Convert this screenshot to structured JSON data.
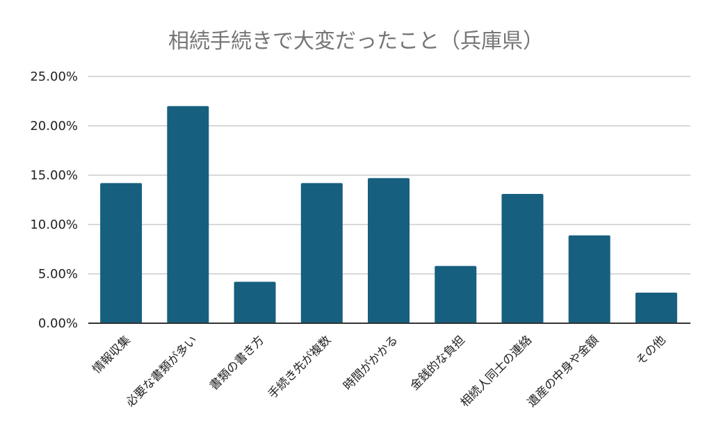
{
  "chart_data": {
    "type": "bar",
    "title": "相続手続きで大変だったこと（兵庫県）",
    "categories": [
      "情報収集",
      "必要な書類が多い",
      "書類の書き方",
      "手続き先が複数",
      "時間がかかる",
      "金銭的な負担",
      "相続人同士の連絡",
      "遺産の中身や金額",
      "その他"
    ],
    "values": [
      14.2,
      22.0,
      4.2,
      14.2,
      14.7,
      5.8,
      13.1,
      8.9,
      3.1
    ],
    "yticks": [
      "0.00%",
      "5.00%",
      "10.00%",
      "15.00%",
      "20.00%",
      "25.00%"
    ],
    "ylim": [
      0,
      25
    ],
    "grid": true,
    "bar_color": "#175f7e",
    "grid_color": "#cccccc"
  }
}
